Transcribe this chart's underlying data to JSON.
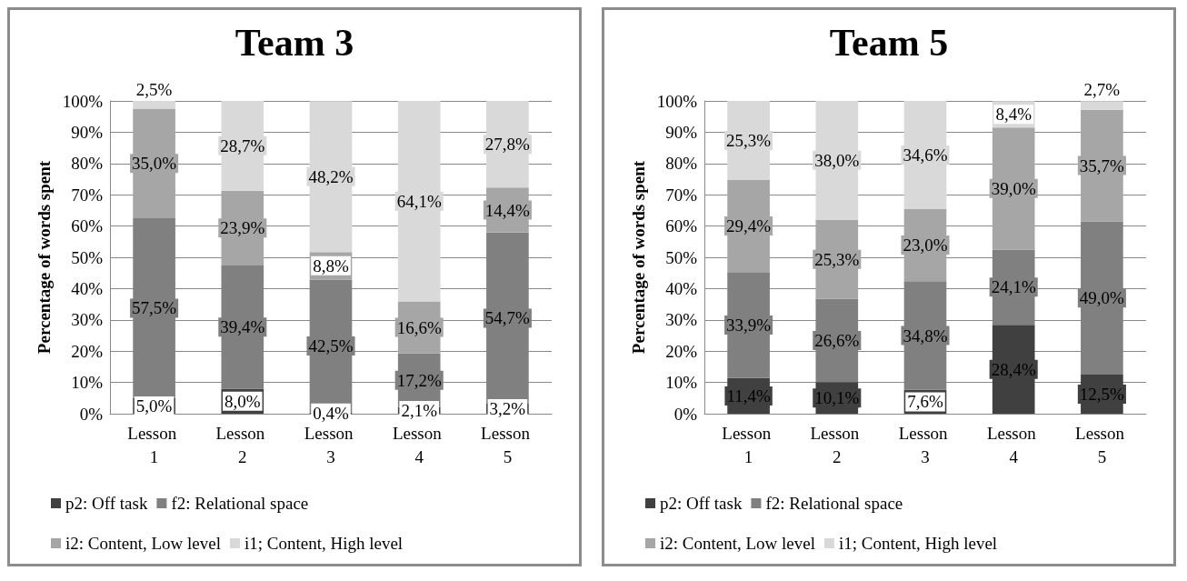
{
  "chart_data": [
    {
      "type": "bar",
      "title": "Team 3",
      "ylabel": "Percentage of words spent",
      "stacked": true,
      "categories": [
        "Lesson 1",
        "Lesson 2",
        "Lesson 3",
        "Lesson 4",
        "Lesson 5"
      ],
      "ylim": [
        0,
        100
      ],
      "yticks": [
        {
          "value": 0,
          "label": "0%"
        },
        {
          "value": 10,
          "label": "10%"
        },
        {
          "value": 20,
          "label": "20%"
        },
        {
          "value": 30,
          "label": "30%"
        },
        {
          "value": 40,
          "label": "40%"
        },
        {
          "value": 50,
          "label": "50%"
        },
        {
          "value": 60,
          "label": "60%"
        },
        {
          "value": 70,
          "label": "70%"
        },
        {
          "value": 80,
          "label": "80%"
        },
        {
          "value": 90,
          "label": "90%"
        },
        {
          "value": 100,
          "label": "100%"
        }
      ],
      "grid": "y",
      "legend": "bottom",
      "series": [
        {
          "name": "p2: Off task",
          "color": "#404040",
          "values": [
            5.0,
            8.0,
            0.4,
            2.1,
            3.2
          ],
          "value_labels": [
            "5,0%",
            "8,0%",
            "0,4%",
            "2,1%",
            "3,2%"
          ]
        },
        {
          "name": "f2: Relational space",
          "color": "#808080",
          "values": [
            57.5,
            39.4,
            42.5,
            17.2,
            54.7
          ],
          "value_labels": [
            "57,5%",
            "39,4%",
            "42,5%",
            "17,2%",
            "54,7%"
          ]
        },
        {
          "name": "i2: Content, Low level",
          "color": "#a6a6a6",
          "values": [
            35.0,
            23.9,
            8.8,
            16.6,
            14.4
          ],
          "value_labels": [
            "35,0%",
            "23,9%",
            "8,8%",
            "16,6%",
            "14,4%"
          ]
        },
        {
          "name": "i1; Content, High level",
          "color": "#d9d9d9",
          "values": [
            2.5,
            28.7,
            48.2,
            64.1,
            27.8
          ],
          "value_labels": [
            "2,5%",
            "28,7%",
            "48,2%",
            "64,1%",
            "27,8%"
          ]
        }
      ]
    },
    {
      "type": "bar",
      "title": "Team 5",
      "ylabel": "Percentage of words spent",
      "stacked": true,
      "categories": [
        "Lesson 1",
        "Lesson 2",
        "Lesson 3",
        "Lesson 4",
        "Lesson 5"
      ],
      "ylim": [
        0,
        100
      ],
      "yticks": [
        {
          "value": 0,
          "label": "0%"
        },
        {
          "value": 10,
          "label": "10%"
        },
        {
          "value": 20,
          "label": "20%"
        },
        {
          "value": 30,
          "label": "30%"
        },
        {
          "value": 40,
          "label": "40%"
        },
        {
          "value": 50,
          "label": "50%"
        },
        {
          "value": 60,
          "label": "60%"
        },
        {
          "value": 70,
          "label": "70%"
        },
        {
          "value": 80,
          "label": "80%"
        },
        {
          "value": 90,
          "label": "90%"
        },
        {
          "value": 100,
          "label": "100%"
        }
      ],
      "grid": "y",
      "legend": "bottom",
      "series": [
        {
          "name": "p2: Off task",
          "color": "#404040",
          "values": [
            11.4,
            10.1,
            7.6,
            28.4,
            12.5
          ],
          "value_labels": [
            "11,4%",
            "10,1%",
            "7,6%",
            "28,4%",
            "12,5%"
          ]
        },
        {
          "name": "f2: Relational space",
          "color": "#808080",
          "values": [
            33.9,
            26.6,
            34.8,
            24.1,
            49.0
          ],
          "value_labels": [
            "33,9%",
            "26,6%",
            "34,8%",
            "24,1%",
            "49,0%"
          ]
        },
        {
          "name": "i2: Content, Low level",
          "color": "#a6a6a6",
          "values": [
            29.4,
            25.3,
            23.0,
            39.0,
            35.7
          ],
          "value_labels": [
            "29,4%",
            "25,3%",
            "23,0%",
            "39,0%",
            "35,7%"
          ]
        },
        {
          "name": "i1; Content, High level",
          "color": "#d9d9d9",
          "values": [
            25.3,
            38.0,
            34.6,
            8.4,
            2.7
          ],
          "value_labels": [
            "25,3%",
            "38,0%",
            "34,6%",
            "8,4%",
            "2,7%"
          ]
        }
      ]
    }
  ]
}
